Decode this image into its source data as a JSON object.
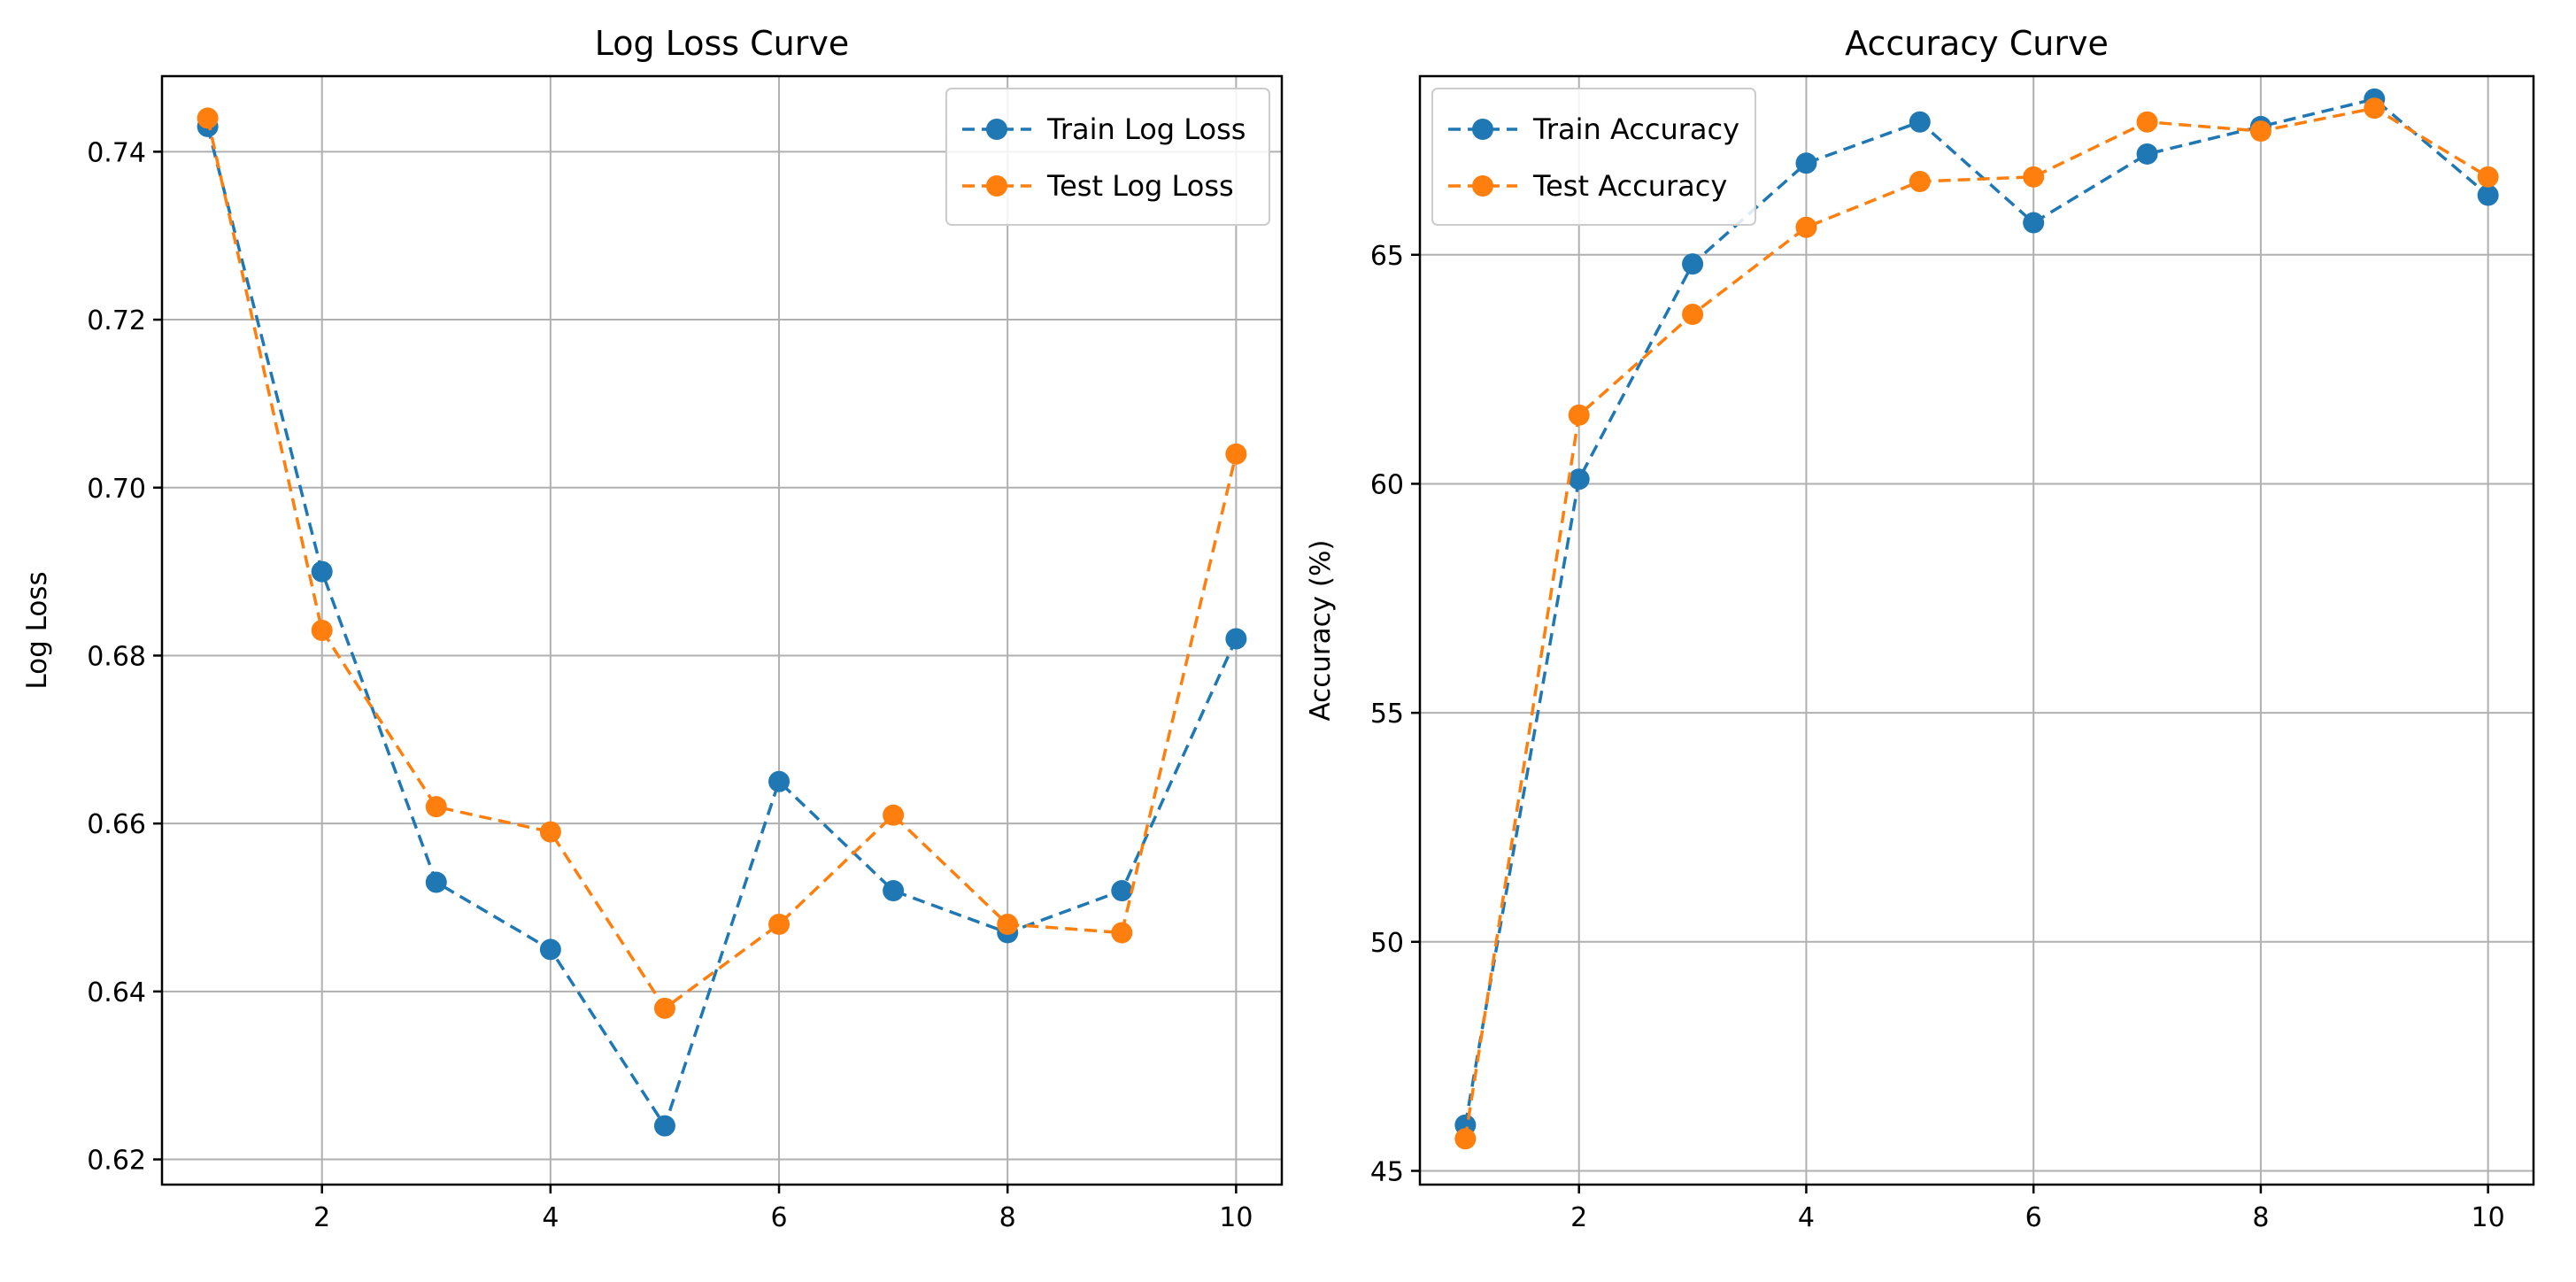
{
  "colors": {
    "train": "#1f77b4",
    "test": "#ff7f0e",
    "grid": "#b0b0b0"
  },
  "chart_data": [
    {
      "type": "line",
      "title": "Log Loss Curve",
      "xlabel": "",
      "ylabel": "Log Loss",
      "x": [
        1,
        2,
        3,
        4,
        5,
        6,
        7,
        8,
        9,
        10
      ],
      "xlim": [
        0.6,
        10.4
      ],
      "ylim": [
        0.617,
        0.749
      ],
      "xticks": [
        2,
        4,
        6,
        8,
        10
      ],
      "yticks": [
        0.62,
        0.64,
        0.66,
        0.68,
        0.7,
        0.72,
        0.74
      ],
      "yticklabels": [
        "0.62",
        "0.64",
        "0.66",
        "0.68",
        "0.70",
        "0.72",
        "0.74"
      ],
      "grid": true,
      "legend_position": "top-right",
      "series": [
        {
          "name": "Train Log Loss",
          "color": "#1f77b4",
          "style": "dashed",
          "marker": "circle",
          "values": [
            0.743,
            0.69,
            0.653,
            0.645,
            0.624,
            0.665,
            0.652,
            0.647,
            0.652,
            0.682
          ]
        },
        {
          "name": "Test Log Loss",
          "color": "#ff7f0e",
          "style": "dashed",
          "marker": "circle",
          "values": [
            0.744,
            0.683,
            0.662,
            0.659,
            0.638,
            0.648,
            0.661,
            0.648,
            0.647,
            0.704
          ]
        }
      ]
    },
    {
      "type": "line",
      "title": "Accuracy Curve",
      "xlabel": "",
      "ylabel": "Accuracy (%)",
      "x": [
        1,
        2,
        3,
        4,
        5,
        6,
        7,
        8,
        9,
        10
      ],
      "xlim": [
        0.6,
        10.4
      ],
      "ylim": [
        44.7,
        68.9
      ],
      "xticks": [
        2,
        4,
        6,
        8,
        10
      ],
      "yticks": [
        45,
        50,
        55,
        60,
        65
      ],
      "yticklabels": [
        "45",
        "50",
        "55",
        "60",
        "65"
      ],
      "grid": true,
      "legend_position": "top-left",
      "series": [
        {
          "name": "Train Accuracy",
          "color": "#1f77b4",
          "style": "dashed",
          "marker": "circle",
          "values": [
            46.0,
            60.1,
            64.8,
            67.0,
            67.9,
            65.7,
            67.2,
            67.8,
            68.4,
            66.3
          ]
        },
        {
          "name": "Test Accuracy",
          "color": "#ff7f0e",
          "style": "dashed",
          "marker": "circle",
          "values": [
            45.7,
            61.5,
            63.7,
            65.6,
            66.6,
            66.7,
            67.9,
            67.7,
            68.2,
            66.7
          ]
        }
      ]
    }
  ]
}
